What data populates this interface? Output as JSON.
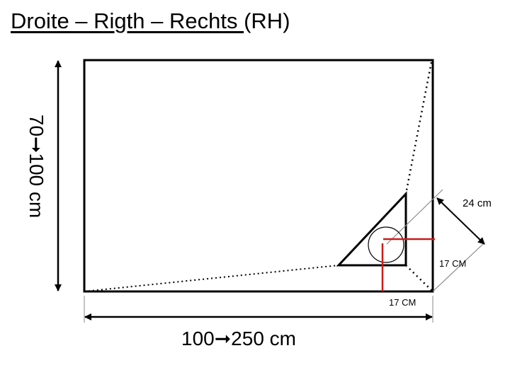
{
  "title": {
    "underlined": "Droite – Rigth – Rechts ",
    "suffix": "(RH)"
  },
  "dimensions": {
    "height_label": "70➞100 cm",
    "width_label": "100➞250 cm",
    "diagonal_label": "24 cm",
    "side_right_label": "17 CM",
    "side_bottom_label": "17 CM"
  },
  "colors": {
    "outline": "#000000",
    "marker": "#cc1a1a",
    "guide": "#888888"
  }
}
